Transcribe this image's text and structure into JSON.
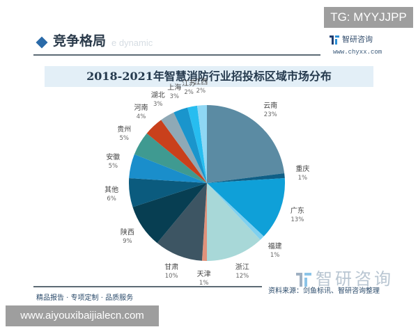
{
  "overlay": {
    "tg_badge": "TG: MYYJJPP",
    "url_badge": "www.aiyouxibaijialecn.com"
  },
  "header": {
    "section_title": "竞争格局",
    "ghost_subtitle": "e dynamic",
    "logo_name": "智研咨询",
    "logo_url": "www.chyxx.com"
  },
  "footer": {
    "tagline": "精品报告 · 专项定制 · 品质服务",
    "source": "资料来源：剑鱼标讯、智研咨询整理",
    "watermark": "智研咨询"
  },
  "chart_data": {
    "type": "pie",
    "title": "2018-2021年智慧消防行业招投标区域市场分布",
    "start_angle": "12 o'clock, clockwise",
    "unit": "%",
    "categories": [
      "云南",
      "重庆",
      "广东",
      "福建",
      "浙江",
      "天津",
      "甘肃",
      "陕西",
      "其他",
      "安徽",
      "贵州",
      "河南",
      "湖北",
      "上海",
      "江苏",
      "江西"
    ],
    "values": [
      23,
      1,
      13,
      1,
      12,
      1,
      10,
      9,
      6,
      5,
      5,
      4,
      3,
      3,
      2,
      2
    ],
    "labels": [
      "23%",
      "1%",
      "13%",
      "1%",
      "12%",
      "1%",
      "10%",
      "9%",
      "6%",
      "5%",
      "5%",
      "4%",
      "3%",
      "3%",
      "2%",
      "2%"
    ],
    "colors": [
      "#5b8ba3",
      "#0f5f86",
      "#0fa0d8",
      "#7fd0ef",
      "#a8d8d8",
      "#e0917a",
      "#3d5563",
      "#073e52",
      "#0b5b7e",
      "#1a8ecb",
      "#3f9a91",
      "#c9401c",
      "#8fa9b6",
      "#1a95cc",
      "#27bdf0",
      "#8fd7f4"
    ]
  }
}
